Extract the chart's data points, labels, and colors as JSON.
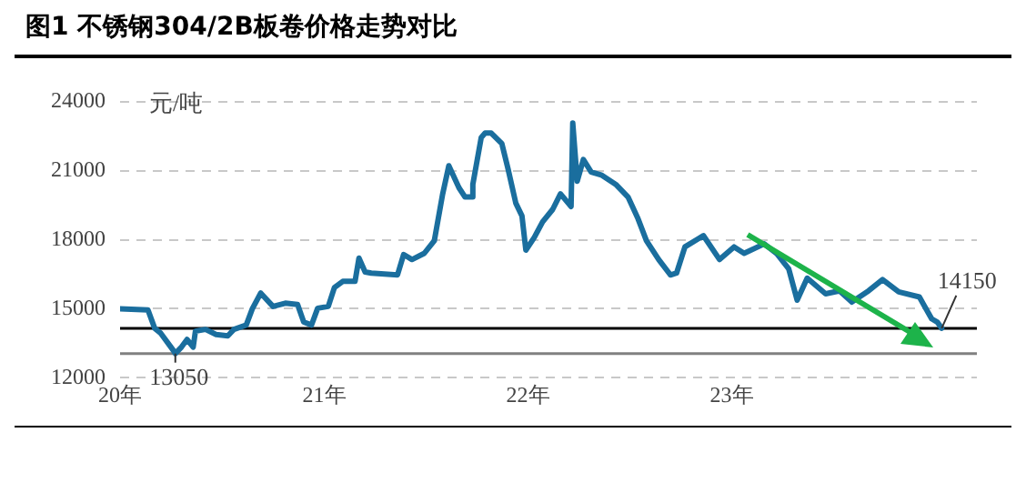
{
  "chart_data": {
    "type": "line",
    "title": "图1 不锈钢304/2B板卷价格走势对比",
    "ylabel": "元/吨",
    "xlim": [
      "2020-01-01",
      "2024-03-15"
    ],
    "xticks": [
      {
        "value": "2020",
        "label": "20年"
      },
      {
        "value": "2021",
        "label": "21年"
      },
      {
        "value": "2022",
        "label": "22年"
      },
      {
        "value": "2023",
        "label": "23年"
      }
    ],
    "ylim": [
      12000,
      24000
    ],
    "yticks": [
      12000,
      15000,
      18000,
      21000,
      24000
    ],
    "grid": "y",
    "legend": false,
    "marker": "none",
    "line_style": "solid",
    "series": [
      {
        "color": "#1a6e9e",
        "x": [
          "2020-01-01",
          "2020-02-20",
          "2020-03-03",
          "2020-03-14",
          "2020-04-05",
          "2020-04-09",
          "2020-04-20",
          "2020-04-30",
          "2020-05-11",
          "2020-05-15",
          "2020-06-02",
          "2020-06-21",
          "2020-07-12",
          "2020-07-23",
          "2020-08-14",
          "2020-08-25",
          "2020-09-09",
          "2020-10-01",
          "2020-10-23",
          "2020-11-14",
          "2020-11-25",
          "2020-12-09",
          "2020-12-20",
          "2021-01-08",
          "2021-01-19",
          "2021-02-03",
          "2021-02-25",
          "2021-03-04",
          "2021-03-15",
          "2021-03-26",
          "2021-05-12",
          "2021-05-23",
          "2021-06-07",
          "2021-06-29",
          "2021-07-17",
          "2021-08-01",
          "2021-08-12",
          "2021-08-30",
          "2021-09-10",
          "2021-09-21",
          "2021-09-24",
          "2021-10-09",
          "2021-10-16",
          "2021-10-27",
          "2021-11-15",
          "2021-11-26",
          "2021-12-10",
          "2021-12-21",
          "2021-12-28",
          "2022-01-12",
          "2022-01-27",
          "2022-02-14",
          "2022-02-28",
          "2022-03-19",
          "2022-03-22",
          "2022-03-30",
          "2022-04-10",
          "2022-04-24",
          "2022-05-12",
          "2022-06-07",
          "2022-06-29",
          "2022-07-17",
          "2022-08-01",
          "2022-08-23",
          "2022-09-13",
          "2022-09-24",
          "2022-10-09",
          "2022-11-11",
          "2022-12-10",
          "2023-01-05",
          "2023-01-23",
          "2023-02-28",
          "2023-03-22",
          "2023-04-13",
          "2023-04-28",
          "2023-05-16",
          "2023-06-18",
          "2023-07-13",
          "2023-08-04",
          "2023-09-03",
          "2023-09-28",
          "2023-10-27",
          "2023-12-03",
          "2023-12-25",
          "2024-01-04",
          "2024-01-12"
        ],
        "values": [
          15000,
          14950,
          14150,
          13930,
          13200,
          13050,
          13330,
          13660,
          13330,
          14020,
          14100,
          13880,
          13820,
          14100,
          14290,
          15000,
          15680,
          15100,
          15240,
          15180,
          14420,
          14290,
          15020,
          15100,
          15920,
          16190,
          16190,
          17200,
          16600,
          16550,
          16470,
          17360,
          17140,
          17410,
          17960,
          20000,
          21220,
          20270,
          19860,
          19860,
          20410,
          22450,
          22640,
          22640,
          22180,
          21090,
          19590,
          19040,
          17550,
          18100,
          18780,
          19320,
          20000,
          19450,
          23080,
          20550,
          21490,
          20950,
          20820,
          20410,
          19860,
          18910,
          17960,
          17140,
          16470,
          16550,
          17690,
          18180,
          17140,
          17690,
          17410,
          17820,
          17410,
          16730,
          15370,
          16330,
          15650,
          15780,
          15290,
          15780,
          16270,
          15730,
          15510,
          14560,
          14420,
          14150
        ]
      }
    ],
    "ref_lines": [
      {
        "axis": "y",
        "value": 14150,
        "color": "#000000"
      },
      {
        "axis": "y",
        "value": 13050,
        "color": "#808080"
      }
    ],
    "annotations": [
      {
        "text": "13050",
        "x": "2020-04-09",
        "y": 13050
      },
      {
        "text": "14150",
        "x": "2024-01-12",
        "y": 14150
      }
    ]
  }
}
